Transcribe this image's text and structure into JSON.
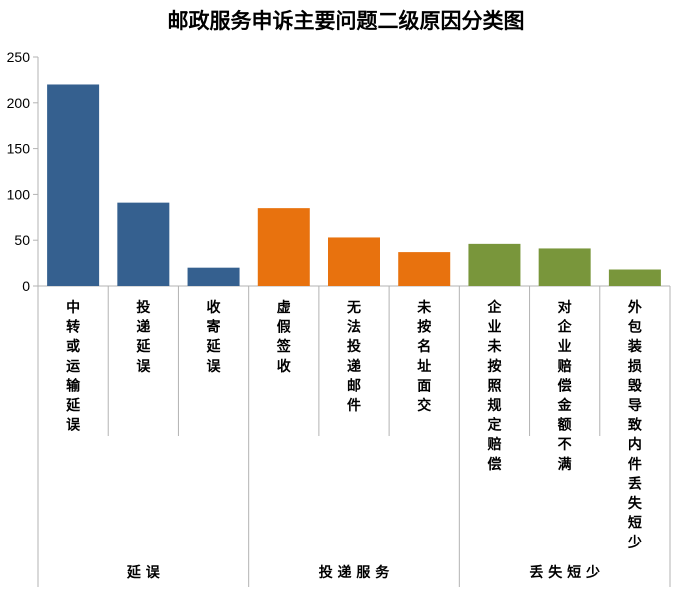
{
  "chart_data": {
    "type": "bar",
    "title": "邮政服务申诉主要问题二级原因分类图",
    "ylim": [
      0,
      250
    ],
    "yticks": [
      0,
      50,
      100,
      150,
      200,
      250
    ],
    "grid": false,
    "legend": "none",
    "categories": [
      "中转或运输延误",
      "投递延误",
      "收寄延误",
      "虚假签收",
      "无法投递邮件",
      "未按名址面交",
      "企业未按照规定赔偿",
      "对企业赔偿金额不满",
      "外包装损毁导致内件丢失短少"
    ],
    "groups": [
      {
        "name": "延误",
        "color": "#35608f",
        "categories": [
          "中转或运输延误",
          "投递延误",
          "收寄延误"
        ],
        "values": [
          220,
          91,
          20
        ]
      },
      {
        "name": "投递服务",
        "color": "#e8720e",
        "categories": [
          "虚假签收",
          "无法投递邮件",
          "未按名址面交"
        ],
        "values": [
          85,
          53,
          37
        ]
      },
      {
        "name": "丢失短少",
        "color": "#79963b",
        "categories": [
          "企业未按照规定赔偿",
          "对企业赔偿金额不满",
          "外包装损毁导致内件丢失短少"
        ],
        "values": [
          46,
          41,
          18
        ]
      }
    ]
  }
}
